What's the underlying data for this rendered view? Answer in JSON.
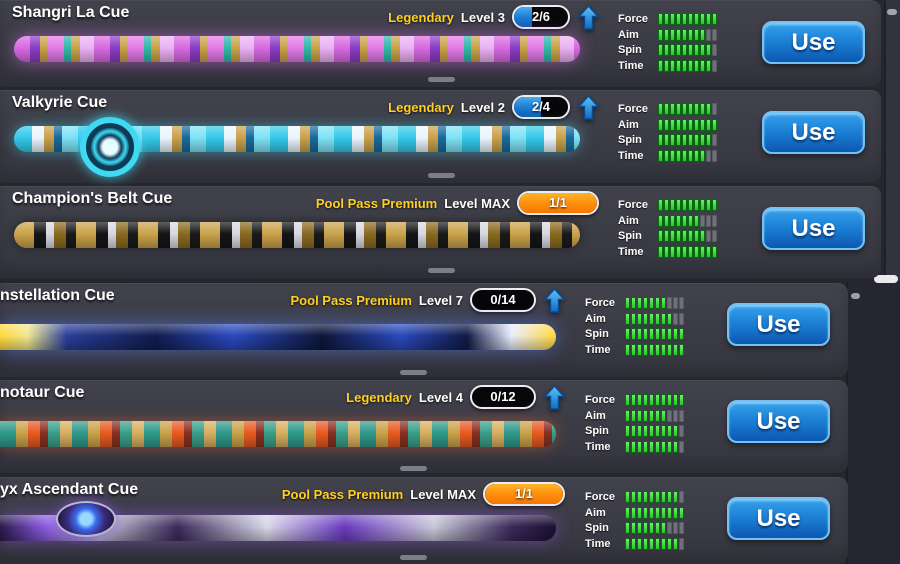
{
  "ui": {
    "use_label": "Use",
    "stat_labels": [
      "Force",
      "Aim",
      "Spin",
      "Time"
    ],
    "stat_max": 10,
    "colors": {
      "rarity_text": "#ffd021",
      "progress_fill_blue": "#1e7fd6",
      "progress_fill_orange": "#ff8f0e",
      "stat_filled": "#33d433",
      "stat_empty": "#70707a",
      "use_button_blue": "#1b7fd4",
      "upgrade_arrow_blue": "#2f9ff0",
      "card_background": "#3b3b45"
    }
  },
  "cards": [
    {
      "name": "Shangri La Cue",
      "rarity": "Legendary",
      "level": "Level 3",
      "progress": "2/6",
      "progress_fill_pct": 33,
      "progress_color": "blue",
      "upgrade_arrow": true,
      "stats": {
        "force": 10,
        "aim": 8,
        "spin": 9,
        "time": 9
      }
    },
    {
      "name": "Valkyrie Cue",
      "rarity": "Legendary",
      "level": "Level 2",
      "progress": "2/4",
      "progress_fill_pct": 50,
      "progress_color": "blue",
      "upgrade_arrow": true,
      "stats": {
        "force": 9,
        "aim": 10,
        "spin": 9,
        "time": 8
      }
    },
    {
      "name": "Champion's Belt Cue",
      "rarity": "Pool Pass Premium",
      "level": "Level MAX",
      "progress": "1/1",
      "progress_fill_pct": 100,
      "progress_color": "orange",
      "upgrade_arrow": false,
      "stats": {
        "force": 10,
        "aim": 7,
        "spin": 8,
        "time": 10
      }
    },
    {
      "name": "nstellation Cue",
      "rarity": "Pool Pass Premium",
      "level": "Level 7",
      "progress": "0/14",
      "progress_fill_pct": 0,
      "progress_color": "blue",
      "upgrade_arrow": true,
      "stats": {
        "force": 7,
        "aim": 8,
        "spin": 10,
        "time": 10
      }
    },
    {
      "name": "notaur Cue",
      "rarity": "Legendary",
      "level": "Level 4",
      "progress": "0/12",
      "progress_fill_pct": 0,
      "progress_color": "blue",
      "upgrade_arrow": true,
      "stats": {
        "force": 10,
        "aim": 7,
        "spin": 9,
        "time": 9
      }
    },
    {
      "name": "yx Ascendant Cue",
      "rarity": "Pool Pass Premium",
      "level": "Level MAX",
      "progress": "1/1",
      "progress_fill_pct": 100,
      "progress_color": "orange",
      "upgrade_arrow": false,
      "stats": {
        "force": 9,
        "aim": 10,
        "spin": 7,
        "time": 9
      }
    }
  ]
}
